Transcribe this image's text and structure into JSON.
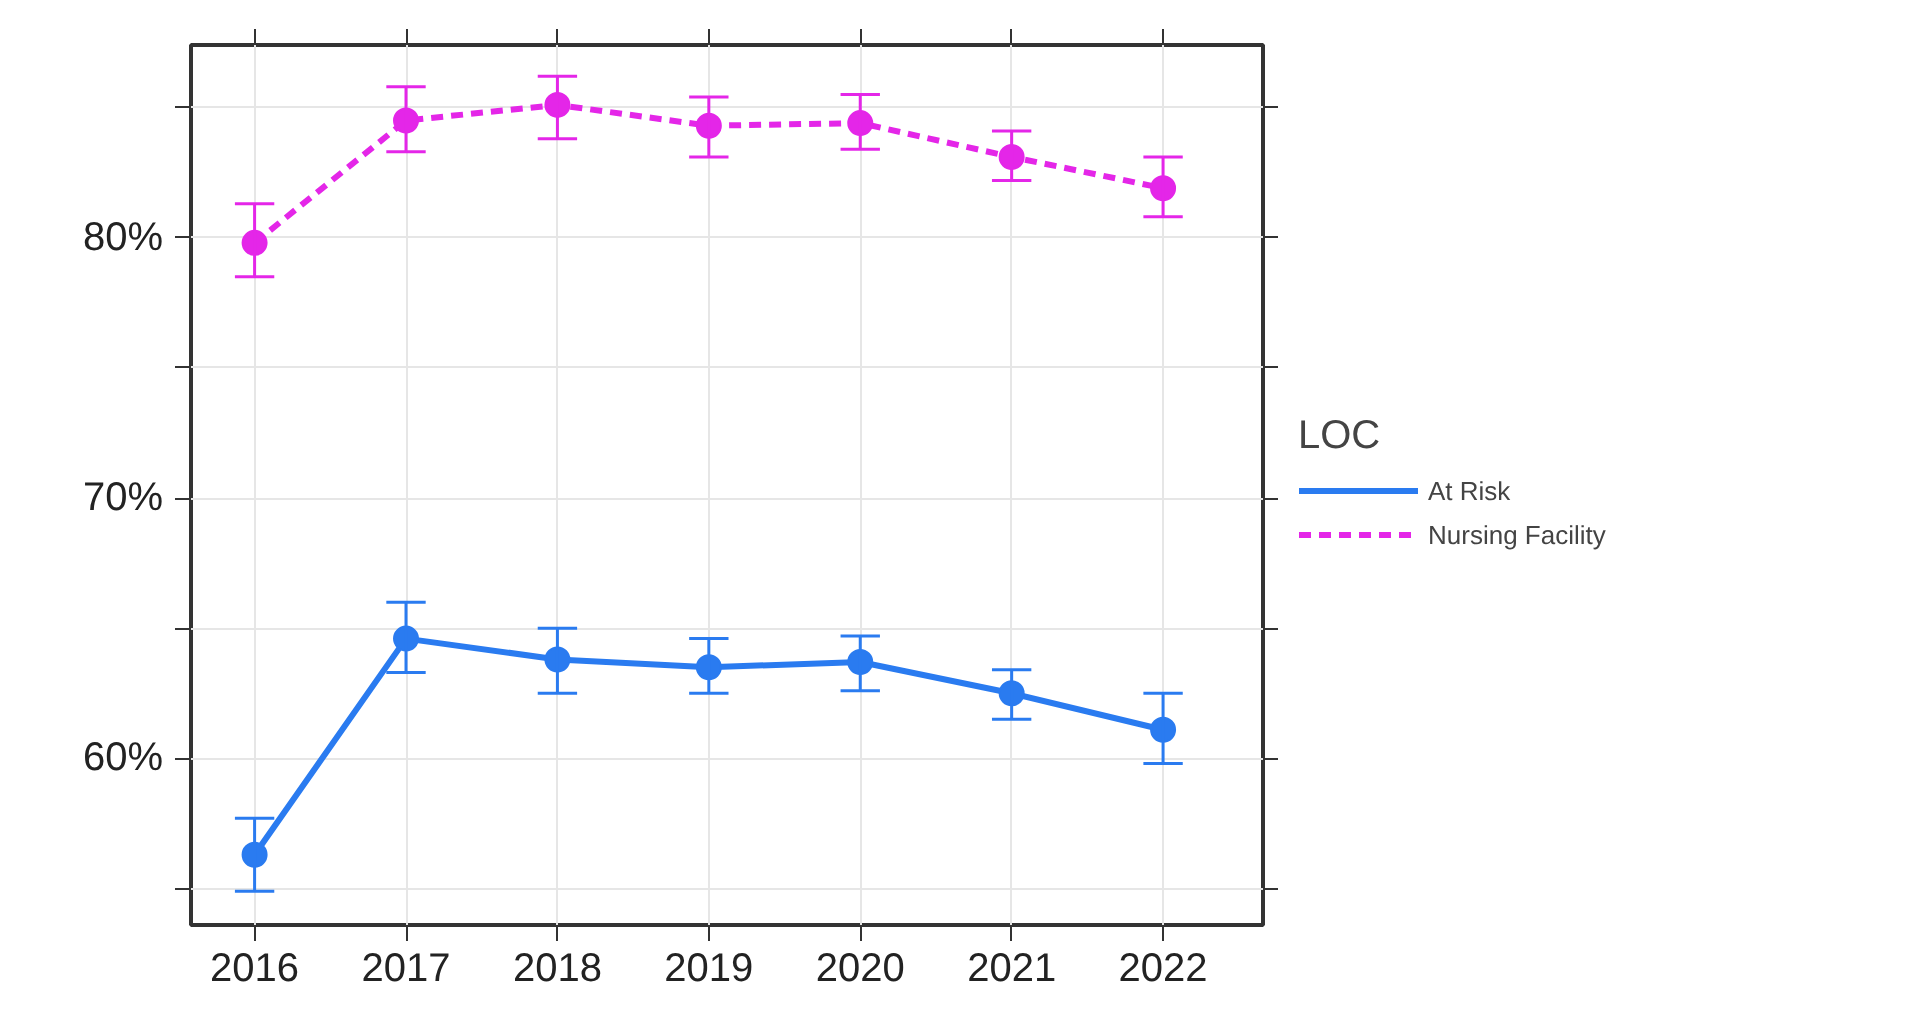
{
  "chart_data": {
    "type": "line",
    "legend_title": "LOC",
    "legend": "right",
    "marker": "circle",
    "grid": true,
    "x": [
      2016,
      2017,
      2018,
      2019,
      2020,
      2021,
      2022
    ],
    "xlim": [
      2015.58,
      2022.66
    ],
    "xticks": [
      2016,
      2017,
      2018,
      2019,
      2020,
      2021,
      2022
    ],
    "ylim": [
      53.6,
      87.4
    ],
    "yticks": [
      {
        "value": 55,
        "label": null
      },
      {
        "value": 60,
        "label": "60%"
      },
      {
        "value": 65,
        "label": null
      },
      {
        "value": 70,
        "label": "70%"
      },
      {
        "value": 75,
        "label": null
      },
      {
        "value": 80,
        "label": "80%"
      },
      {
        "value": 85,
        "label": null
      }
    ],
    "series": [
      {
        "name": "At Risk",
        "color": "#2a7bf0",
        "line_style": "solid",
        "values": [
          56.3,
          64.6,
          63.8,
          63.5,
          63.7,
          62.5,
          61.1
        ],
        "errors": [
          [
            54.9,
            57.7
          ],
          [
            63.3,
            66.0
          ],
          [
            62.5,
            65.0
          ],
          [
            62.5,
            64.6
          ],
          [
            62.6,
            64.7
          ],
          [
            61.5,
            63.4
          ],
          [
            59.8,
            62.5
          ]
        ]
      },
      {
        "name": "Nursing Facility",
        "color": "#e426e8",
        "line_style": "dashed",
        "values": [
          79.8,
          84.5,
          85.1,
          84.3,
          84.4,
          83.1,
          81.9
        ],
        "errors": [
          [
            78.5,
            81.3
          ],
          [
            83.3,
            85.8
          ],
          [
            83.8,
            86.2
          ],
          [
            83.1,
            85.4
          ],
          [
            83.4,
            85.5
          ],
          [
            82.2,
            84.1
          ],
          [
            80.8,
            83.1
          ]
        ]
      }
    ]
  }
}
